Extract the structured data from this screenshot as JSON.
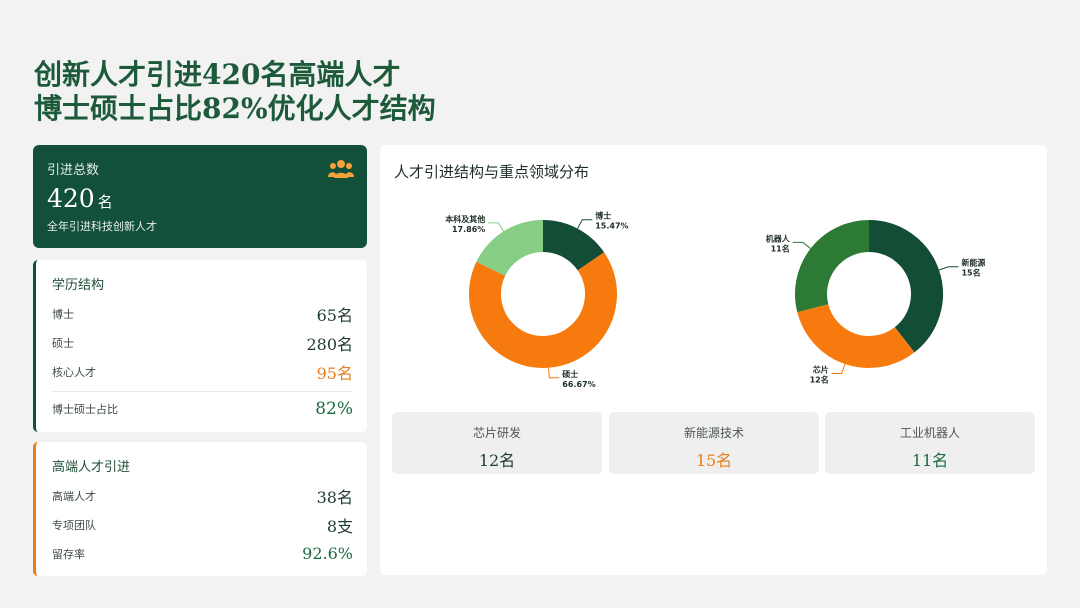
{
  "headline": {
    "line1": "创新人才引进420名高端人才",
    "line2": "博士硕士占比82%优化人才结构"
  },
  "summary": {
    "label": "引进总数",
    "value": "420",
    "unit": "名",
    "desc": "全年引进科技创新人才",
    "icon": "people-icon"
  },
  "education": {
    "title": "学历结构",
    "rows": [
      {
        "label": "博士",
        "value": "65名"
      },
      {
        "label": "硕士",
        "value": "280名"
      },
      {
        "label": "核心人才",
        "value": "95名"
      }
    ],
    "ratio_label": "博士硕士占比",
    "ratio_value": "82%"
  },
  "talent": {
    "title": "高端人才引进",
    "rows": [
      {
        "label": "高端人才",
        "value": "38名"
      },
      {
        "label": "专项团队",
        "value": "8支"
      },
      {
        "label": "留存率",
        "value": "92.6%"
      }
    ]
  },
  "panel": {
    "title": "人才引进结构与重点领域分布"
  },
  "colors": {
    "dark_green": "#144d36",
    "orange": "#f67a0e",
    "light_green": "#86cd86",
    "mid_green": "#2d7a34"
  },
  "chart_data": [
    {
      "type": "donut",
      "slices": [
        {
          "label": "博士",
          "value": 15.47,
          "display": "15.47%",
          "color": "#144d36"
        },
        {
          "label": "硕士",
          "value": 66.67,
          "display": "66.67%",
          "color": "#f67a0e"
        },
        {
          "label": "本科及其他",
          "value": 17.86,
          "display": "17.86%",
          "color": "#86cd86"
        }
      ]
    },
    {
      "type": "donut",
      "slices": [
        {
          "label": "新能源",
          "value": 15,
          "display": "15名",
          "color": "#144d36"
        },
        {
          "label": "芯片",
          "value": 12,
          "display": "12名",
          "color": "#f67a0e"
        },
        {
          "label": "机器人",
          "value": 11,
          "display": "11名",
          "color": "#2d7a34"
        }
      ]
    }
  ],
  "stats": [
    {
      "label": "芯片研发",
      "value": "12名",
      "color": "#1f3b2f"
    },
    {
      "label": "新能源技术",
      "value": "15名",
      "color": "#e5801b"
    },
    {
      "label": "工业机器人",
      "value": "11名",
      "color": "#1d6a40"
    }
  ]
}
